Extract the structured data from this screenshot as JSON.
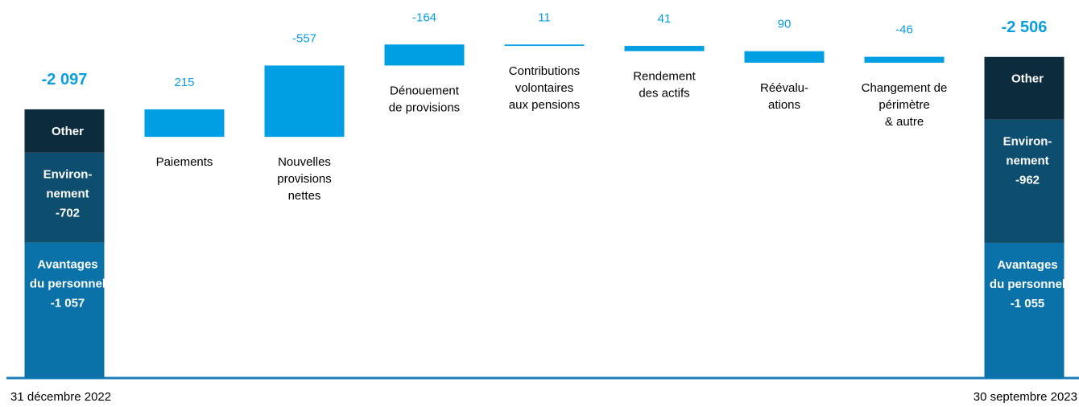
{
  "chart_data": {
    "type": "waterfall",
    "ylim": [
      0,
      -2900
    ],
    "step_color": "#009fe3",
    "value_label_color": "#0a9ee0",
    "totals": [
      {
        "label": "31 décembre 2022",
        "value": -2097,
        "value_label": "-2 097",
        "segments": [
          {
            "name": [
              "Avantages",
              "du personnel"
            ],
            "value": -1057,
            "value_label": "-1 057",
            "color": "#0a72a8"
          },
          {
            "name": [
              "Environ-",
              "nement"
            ],
            "value": -702,
            "color": "#0d4d6e"
          },
          {
            "name": [
              "Other"
            ],
            "value": -338,
            "color": "#0c2b3c"
          }
        ]
      },
      {
        "label": "30 septembre 2023",
        "value": -2506,
        "value_label": "-2 506",
        "segments": [
          {
            "name": [
              "Avantages",
              "du personnel"
            ],
            "value": -1055,
            "value_label": "-1 055",
            "color": "#0a72a8"
          },
          {
            "name": [
              "Environ-",
              "nement"
            ],
            "value": -962,
            "color": "#0d4d6e"
          },
          {
            "name": [
              "Other"
            ],
            "value": -489,
            "color": "#0c2b3c"
          }
        ]
      }
    ],
    "categories": [
      [
        "Paiements"
      ],
      [
        "Nouvelles",
        "provisions",
        "nettes"
      ],
      [
        "Dénouement",
        "de provisions"
      ],
      [
        "Contributions",
        "volontaires",
        "aux pensions"
      ],
      [
        "Rendement",
        "des actifs"
      ],
      [
        "Réévalu-",
        "ations"
      ],
      [
        "Changement de",
        "périmètre",
        "& autre"
      ]
    ],
    "values": [
      215,
      -557,
      -164,
      11,
      41,
      90,
      -46
    ]
  }
}
